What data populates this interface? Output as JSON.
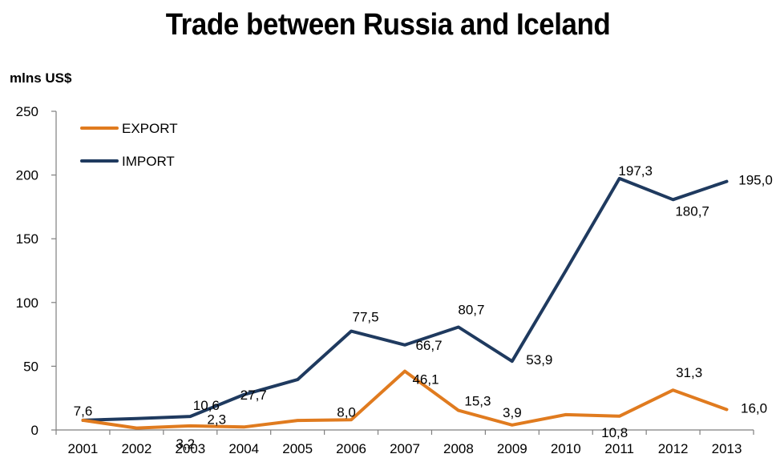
{
  "chart_data": {
    "type": "line",
    "title": "Trade between Russia and Iceland",
    "ylabel": "mlns US$",
    "xlabel": "",
    "categories": [
      "2001",
      "2002",
      "2003",
      "2004",
      "2005",
      "2006",
      "2007",
      "2008",
      "2009",
      "2010",
      "2011",
      "2012",
      "2013"
    ],
    "ylim": [
      0,
      250
    ],
    "yticks": [
      "0",
      "50",
      "100",
      "150",
      "200",
      "250"
    ],
    "grid": false,
    "legend_position": "top-left",
    "series": [
      {
        "name": "EXPORT",
        "color": "#E07B1F",
        "values": [
          7.6,
          1.5,
          3.2,
          2.3,
          7.5,
          8.0,
          46.1,
          15.3,
          3.9,
          12.0,
          10.8,
          31.3,
          16.0
        ],
        "labels": [
          "7,6",
          "",
          "3,2",
          "2,3",
          "",
          "8,0",
          "46,1",
          "15,3",
          "3,9",
          "",
          "10,8",
          "31,3",
          "16,0"
        ]
      },
      {
        "name": "IMPORT",
        "color": "#1F3A5F",
        "values": [
          7.6,
          9.0,
          10.6,
          27.7,
          39.5,
          77.5,
          66.7,
          80.7,
          53.9,
          125.0,
          197.3,
          180.7,
          195.0
        ],
        "labels": [
          "",
          "",
          "10,6",
          "27,7",
          "",
          "77,5",
          "66,7",
          "80,7",
          "53,9",
          "",
          "197,3",
          "180,7",
          "195,0"
        ]
      }
    ]
  }
}
